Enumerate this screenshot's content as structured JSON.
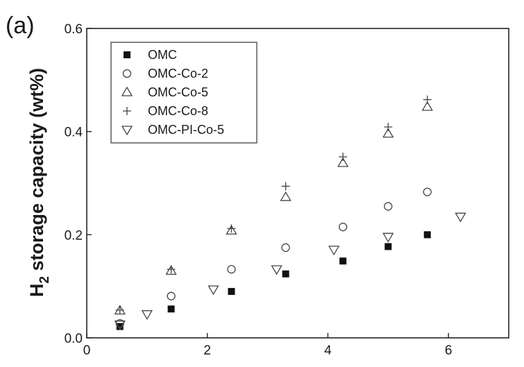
{
  "chart_data": {
    "type": "scatter",
    "panel_label": "(a)",
    "title": "",
    "xlabel": "",
    "ylabel_main": "H",
    "ylabel_sub": "2",
    "ylabel_rest": " storage capacity (wt%)",
    "xlim": [
      0,
      7
    ],
    "ylim": [
      0,
      0.6
    ],
    "xticks": [
      0,
      2,
      4,
      6
    ],
    "xtick_labels": [
      "0",
      "2",
      "4",
      "6"
    ],
    "yticks": [
      0.0,
      0.2,
      0.4,
      0.6
    ],
    "ytick_labels": [
      "0.0",
      "0.2",
      "0.4",
      "0.6"
    ],
    "grid": false,
    "legend_position": "top-left",
    "series": [
      {
        "name": "OMC",
        "marker": "filled-square",
        "x": [
          0.55,
          1.4,
          2.4,
          3.3,
          4.25,
          5.0,
          5.65
        ],
        "y": [
          0.022,
          0.056,
          0.09,
          0.124,
          0.149,
          0.177,
          0.2
        ]
      },
      {
        "name": "OMC-Co-2",
        "marker": "open-circle",
        "x": [
          0.55,
          1.4,
          2.4,
          3.3,
          4.25,
          5.0,
          5.65
        ],
        "y": [
          0.028,
          0.081,
          0.133,
          0.175,
          0.215,
          0.255,
          0.283
        ]
      },
      {
        "name": "OMC-Co-5",
        "marker": "open-triangle-up",
        "x": [
          0.55,
          1.4,
          2.4,
          3.3,
          4.25,
          5.0,
          5.65
        ],
        "y": [
          0.053,
          0.13,
          0.208,
          0.273,
          0.339,
          0.396,
          0.448
        ]
      },
      {
        "name": "OMC-Co-8",
        "marker": "plus",
        "x": [
          0.55,
          1.4,
          2.4,
          3.3,
          4.25,
          5.0,
          5.65
        ],
        "y": [
          0.054,
          0.133,
          0.212,
          0.294,
          0.351,
          0.409,
          0.462
        ]
      },
      {
        "name": "OMC-PI-Co-5",
        "marker": "open-triangle-down",
        "x": [
          0.55,
          1.0,
          2.1,
          3.15,
          4.1,
          5.0,
          6.2
        ],
        "y": [
          0.026,
          0.046,
          0.094,
          0.133,
          0.171,
          0.196,
          0.235
        ]
      }
    ]
  }
}
